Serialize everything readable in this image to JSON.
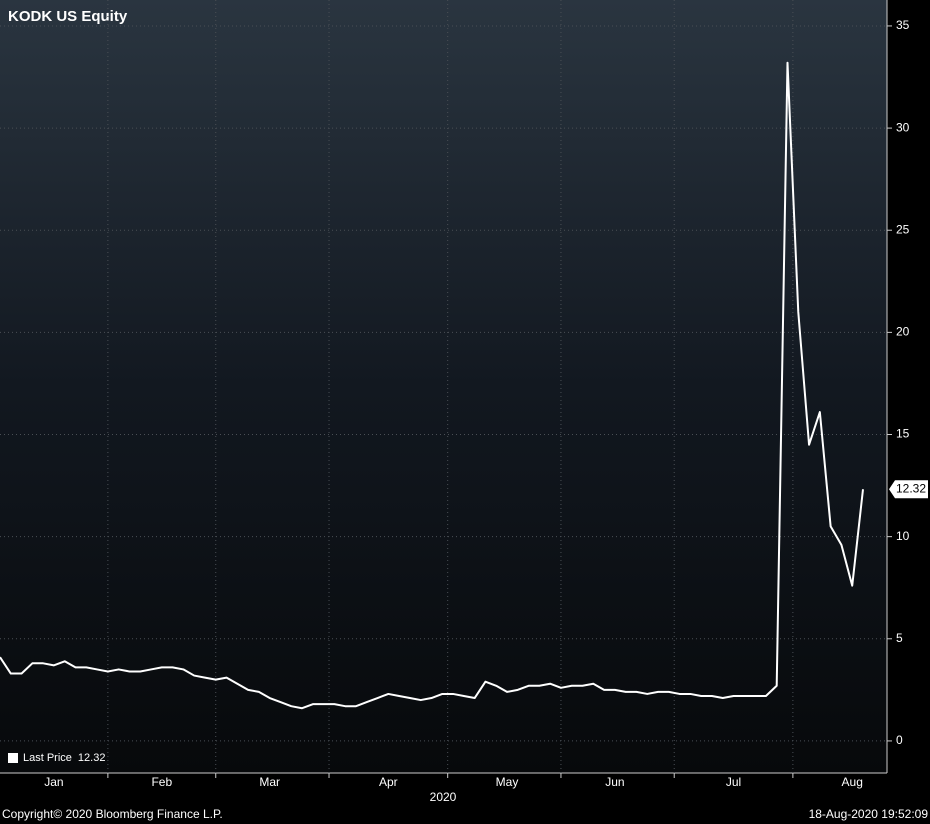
{
  "chart_data": {
    "type": "line",
    "title": "KODK US Equity",
    "categories": [
      null,
      null,
      null,
      null,
      null,
      "Jan",
      null,
      null,
      null,
      null,
      null,
      null,
      null,
      null,
      null,
      "Feb",
      null,
      null,
      null,
      null,
      null,
      null,
      null,
      null,
      null,
      "Mar",
      null,
      null,
      null,
      null,
      null,
      null,
      null,
      null,
      null,
      null,
      "Apr",
      null,
      null,
      null,
      null,
      null,
      null,
      null,
      null,
      null,
      null,
      "May",
      null,
      null,
      null,
      null,
      null,
      null,
      null,
      null,
      null,
      "Jun",
      null,
      null,
      null,
      null,
      null,
      null,
      null,
      null,
      null,
      null,
      "Jul",
      null,
      null,
      null,
      null,
      null,
      null,
      null,
      null,
      null,
      null,
      "Aug",
      null
    ],
    "xlabel": "2020",
    "series": [
      {
        "name": "Last Price",
        "color": "#ffffff",
        "values": [
          4.1,
          3.3,
          3.3,
          3.8,
          3.8,
          3.7,
          3.9,
          3.6,
          3.6,
          3.5,
          3.4,
          3.5,
          3.4,
          3.4,
          3.5,
          3.6,
          3.6,
          3.5,
          3.2,
          3.1,
          3.0,
          3.1,
          2.8,
          2.5,
          2.4,
          2.1,
          1.9,
          1.7,
          1.6,
          1.8,
          1.8,
          1.8,
          1.7,
          1.7,
          1.9,
          2.1,
          2.3,
          2.2,
          2.1,
          2.0,
          2.1,
          2.3,
          2.3,
          2.2,
          2.1,
          2.9,
          2.7,
          2.4,
          2.5,
          2.7,
          2.7,
          2.8,
          2.6,
          2.7,
          2.7,
          2.8,
          2.5,
          2.5,
          2.4,
          2.4,
          2.3,
          2.4,
          2.4,
          2.3,
          2.3,
          2.2,
          2.2,
          2.1,
          2.2,
          2.2,
          2.2,
          2.2,
          2.7,
          33.2,
          21,
          14.5,
          16.1,
          10.5,
          9.6,
          7.6,
          12.32
        ]
      }
    ],
    "ylim": [
      -1.57,
      36.27
    ],
    "yticks": [
      0,
      5,
      10,
      15,
      20,
      25,
      30,
      35
    ],
    "grid": true,
    "legend": "bottom-left"
  },
  "footer": {
    "copyright": "Copyright© 2020 Bloomberg Finance L.P.",
    "timestamp": "18-Aug-2020 19:52:09"
  }
}
